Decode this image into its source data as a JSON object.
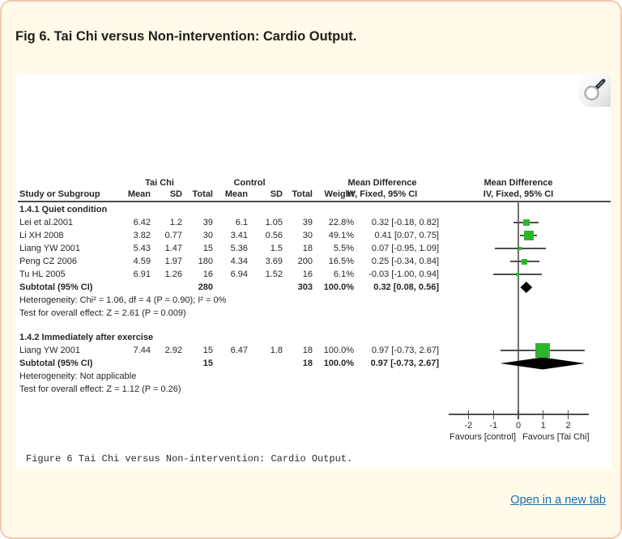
{
  "page": {
    "title": "Fig 6. Tai Chi versus Non-intervention: Cardio Output.",
    "open_link": "Open in a new tab"
  },
  "colors": {
    "card_bg": "#fffae9",
    "card_border": "#f3c7ae",
    "marker_green": "#2db52d",
    "diamond_black": "#000000",
    "link_blue": "#1a6eae",
    "line_gray": "#4d4d4d"
  },
  "chart_data": {
    "type": "forest_plot",
    "caption": "Figure 6 Tai Chi versus Non-intervention: Cardio Output.",
    "group_headers": {
      "treatment": "Tai Chi",
      "control": "Control",
      "effect_table": "Mean Difference",
      "effect_plot": "Mean Difference"
    },
    "column_headers": {
      "study": "Study or Subgroup",
      "mean1": "Mean",
      "sd1": "SD",
      "total1": "Total",
      "mean2": "Mean",
      "sd2": "SD",
      "total2": "Total",
      "weight": "Weight",
      "ci": "IV, Fixed, 95% CI",
      "ci_plot": "IV, Fixed, 95% CI"
    },
    "axis": {
      "ticks": [
        -2,
        -1,
        0,
        1,
        2
      ],
      "xmin": -2.8,
      "xmax": 2.8,
      "left_label": "Favours [control]",
      "right_label": "Favours [Tai Chi]"
    },
    "subgroups": [
      {
        "name": "1.4.1 Quiet condition",
        "studies": [
          {
            "study": "Lei et al.2001",
            "mean1": "6.42",
            "sd1": "1.2",
            "total1": "39",
            "mean2": "6.1",
            "sd2": "1.05",
            "total2": "39",
            "weight": "22.8%",
            "ci_text": "0.32 [-0.18, 0.82]",
            "md": 0.32,
            "lo": -0.18,
            "hi": 0.82,
            "wpct": 22.8
          },
          {
            "study": "Li XH 2008",
            "mean1": "3.82",
            "sd1": "0.77",
            "total1": "30",
            "mean2": "3.41",
            "sd2": "0.56",
            "total2": "30",
            "weight": "49.1%",
            "ci_text": "0.41 [0.07, 0.75]",
            "md": 0.41,
            "lo": 0.07,
            "hi": 0.75,
            "wpct": 49.1
          },
          {
            "study": "Liang YW 2001",
            "mean1": "5.43",
            "sd1": "1.47",
            "total1": "15",
            "mean2": "5.36",
            "sd2": "1.5",
            "total2": "18",
            "weight": "5.5%",
            "ci_text": "0.07 [-0.95, 1.09]",
            "md": 0.07,
            "lo": -0.95,
            "hi": 1.09,
            "wpct": 5.5
          },
          {
            "study": "Peng CZ 2006",
            "mean1": "4.59",
            "sd1": "1.97",
            "total1": "180",
            "mean2": "4.34",
            "sd2": "3.69",
            "total2": "200",
            "weight": "16.5%",
            "ci_text": "0.25 [-0.34, 0.84]",
            "md": 0.25,
            "lo": -0.34,
            "hi": 0.84,
            "wpct": 16.5
          },
          {
            "study": "Tu HL 2005",
            "mean1": "6.91",
            "sd1": "1.26",
            "total1": "16",
            "mean2": "6.94",
            "sd2": "1.52",
            "total2": "16",
            "weight": "6.1%",
            "ci_text": "-0.03 [-1.00, 0.94]",
            "md": -0.03,
            "lo": -1.0,
            "hi": 0.94,
            "wpct": 6.1
          }
        ],
        "subtotal": {
          "study": "Subtotal (95% CI)",
          "total1": "280",
          "total2": "303",
          "weight": "100.0%",
          "ci_text": "0.32 [0.08, 0.56]",
          "md": 0.32,
          "lo": 0.08,
          "hi": 0.56
        },
        "heterogeneity": "Heterogeneity: Chi² = 1.06, df = 4 (P = 0.90); I² = 0%",
        "overall_effect": "Test for overall effect: Z = 2.61 (P = 0.009)"
      },
      {
        "name": "1.4.2 Immediately after exercise",
        "studies": [
          {
            "study": "Liang YW 2001",
            "mean1": "7.44",
            "sd1": "2.92",
            "total1": "15",
            "mean2": "6.47",
            "sd2": "1.8",
            "total2": "18",
            "weight": "100.0%",
            "ci_text": "0.97 [-0.73, 2.67]",
            "md": 0.97,
            "lo": -0.73,
            "hi": 2.67,
            "wpct": 100.0
          }
        ],
        "subtotal": {
          "study": "Subtotal (95% CI)",
          "total1": "15",
          "total2": "18",
          "weight": "100.0%",
          "ci_text": "0.97 [-0.73, 2.67]",
          "md": 0.97,
          "lo": -0.73,
          "hi": 2.67
        },
        "heterogeneity": "Heterogeneity: Not applicable",
        "overall_effect": "Test for overall effect: Z = 1.12 (P = 0.26)"
      }
    ]
  }
}
